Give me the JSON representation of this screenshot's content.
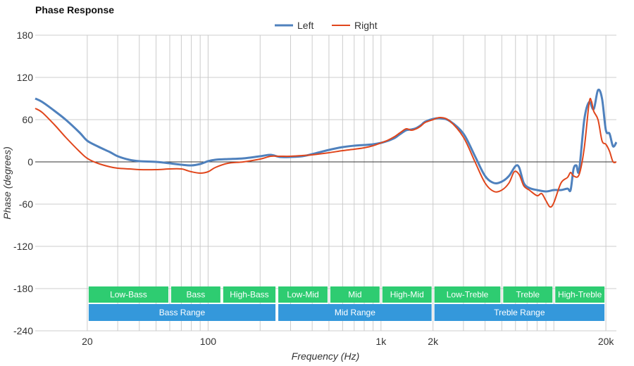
{
  "chart_data": {
    "type": "line",
    "title": "Phase Response",
    "xlabel": "Frequency (Hz)",
    "ylabel": "Phase (degrees)",
    "x_scale": "log",
    "xlim": [
      10,
      23000
    ],
    "ylim": [
      -240,
      180
    ],
    "x_ticks": [
      {
        "value": 20,
        "label": "20"
      },
      {
        "value": 100,
        "label": "100"
      },
      {
        "value": 1000,
        "label": "1k"
      },
      {
        "value": 2000,
        "label": "2k"
      },
      {
        "value": 20000,
        "label": "20k"
      }
    ],
    "y_ticks": [
      180,
      120,
      60,
      0,
      -60,
      -120,
      -180,
      -240
    ],
    "grid": true,
    "legend_position": "top-center",
    "series": [
      {
        "name": "Left",
        "color": "#4f81bd",
        "points": [
          [
            10,
            90
          ],
          [
            11,
            85
          ],
          [
            13,
            72
          ],
          [
            15,
            60
          ],
          [
            18,
            42
          ],
          [
            20,
            30
          ],
          [
            23,
            22
          ],
          [
            27,
            14
          ],
          [
            30,
            8
          ],
          [
            35,
            3
          ],
          [
            40,
            1
          ],
          [
            50,
            0
          ],
          [
            60,
            -2
          ],
          [
            70,
            -4
          ],
          [
            80,
            -5
          ],
          [
            90,
            -3
          ],
          [
            100,
            1
          ],
          [
            110,
            3
          ],
          [
            130,
            4
          ],
          [
            160,
            5
          ],
          [
            200,
            8
          ],
          [
            230,
            10
          ],
          [
            260,
            7
          ],
          [
            300,
            7
          ],
          [
            350,
            8
          ],
          [
            400,
            11
          ],
          [
            500,
            17
          ],
          [
            600,
            21
          ],
          [
            700,
            23
          ],
          [
            800,
            24
          ],
          [
            900,
            25
          ],
          [
            1000,
            27
          ],
          [
            1100,
            30
          ],
          [
            1200,
            34
          ],
          [
            1300,
            40
          ],
          [
            1400,
            45
          ],
          [
            1500,
            46
          ],
          [
            1600,
            48
          ],
          [
            1700,
            52
          ],
          [
            1800,
            57
          ],
          [
            2000,
            61
          ],
          [
            2200,
            62
          ],
          [
            2500,
            58
          ],
          [
            3000,
            40
          ],
          [
            3500,
            8
          ],
          [
            4000,
            -20
          ],
          [
            4500,
            -30
          ],
          [
            5000,
            -28
          ],
          [
            5500,
            -20
          ],
          [
            6000,
            -6
          ],
          [
            6300,
            -8
          ],
          [
            6700,
            -30
          ],
          [
            7200,
            -37
          ],
          [
            8000,
            -40
          ],
          [
            9000,
            -42
          ],
          [
            10000,
            -40
          ],
          [
            11000,
            -40
          ],
          [
            12000,
            -38
          ],
          [
            12500,
            -40
          ],
          [
            13000,
            -10
          ],
          [
            13500,
            -5
          ],
          [
            14000,
            -12
          ],
          [
            15000,
            60
          ],
          [
            16000,
            85
          ],
          [
            17000,
            75
          ],
          [
            18000,
            102
          ],
          [
            19000,
            90
          ],
          [
            20000,
            45
          ],
          [
            21000,
            40
          ],
          [
            22000,
            22
          ],
          [
            23000,
            28
          ]
        ]
      },
      {
        "name": "Right",
        "color": "#e0461c",
        "points": [
          [
            10,
            76
          ],
          [
            11,
            70
          ],
          [
            13,
            52
          ],
          [
            15,
            35
          ],
          [
            18,
            15
          ],
          [
            20,
            5
          ],
          [
            23,
            -2
          ],
          [
            27,
            -7
          ],
          [
            30,
            -9
          ],
          [
            35,
            -10
          ],
          [
            40,
            -11
          ],
          [
            50,
            -11
          ],
          [
            60,
            -10
          ],
          [
            70,
            -10
          ],
          [
            75,
            -12
          ],
          [
            80,
            -14
          ],
          [
            90,
            -16
          ],
          [
            100,
            -14
          ],
          [
            110,
            -8
          ],
          [
            130,
            -2
          ],
          [
            160,
            0
          ],
          [
            200,
            4
          ],
          [
            230,
            8
          ],
          [
            260,
            8
          ],
          [
            300,
            8
          ],
          [
            350,
            9
          ],
          [
            400,
            10
          ],
          [
            500,
            13
          ],
          [
            600,
            16
          ],
          [
            700,
            18
          ],
          [
            800,
            20
          ],
          [
            900,
            23
          ],
          [
            1000,
            27
          ],
          [
            1100,
            31
          ],
          [
            1200,
            36
          ],
          [
            1300,
            42
          ],
          [
            1400,
            47
          ],
          [
            1500,
            45
          ],
          [
            1600,
            47
          ],
          [
            1700,
            51
          ],
          [
            1800,
            56
          ],
          [
            2000,
            60
          ],
          [
            2200,
            63
          ],
          [
            2500,
            58
          ],
          [
            3000,
            35
          ],
          [
            3500,
            0
          ],
          [
            4000,
            -30
          ],
          [
            4500,
            -42
          ],
          [
            5000,
            -40
          ],
          [
            5500,
            -30
          ],
          [
            5900,
            -14
          ],
          [
            6300,
            -18
          ],
          [
            6700,
            -34
          ],
          [
            7200,
            -40
          ],
          [
            8000,
            -48
          ],
          [
            8500,
            -45
          ],
          [
            9000,
            -55
          ],
          [
            9500,
            -64
          ],
          [
            10000,
            -58
          ],
          [
            11000,
            -30
          ],
          [
            12000,
            -22
          ],
          [
            12500,
            -15
          ],
          [
            13000,
            -20
          ],
          [
            14000,
            -18
          ],
          [
            15000,
            20
          ],
          [
            16000,
            84
          ],
          [
            16500,
            86
          ],
          [
            17000,
            72
          ],
          [
            18000,
            60
          ],
          [
            19000,
            30
          ],
          [
            20000,
            25
          ],
          [
            21000,
            15
          ],
          [
            22000,
            0
          ],
          [
            23000,
            0
          ]
        ]
      }
    ],
    "bands_row1": [
      {
        "label": "Low-Bass",
        "from": 20,
        "to": 60
      },
      {
        "label": "Bass",
        "from": 60,
        "to": 120
      },
      {
        "label": "High-Bass",
        "from": 120,
        "to": 250
      },
      {
        "label": "Low-Mid",
        "from": 250,
        "to": 500
      },
      {
        "label": "Mid",
        "from": 500,
        "to": 1000
      },
      {
        "label": "High-Mid",
        "from": 1000,
        "to": 2000
      },
      {
        "label": "Low-Treble",
        "from": 2000,
        "to": 5000
      },
      {
        "label": "Treble",
        "from": 5000,
        "to": 10000
      },
      {
        "label": "High-Treble",
        "from": 10000,
        "to": 20000
      }
    ],
    "bands_row2": [
      {
        "label": "Bass Range",
        "from": 20,
        "to": 250
      },
      {
        "label": "Mid Range",
        "from": 250,
        "to": 2000
      },
      {
        "label": "Treble Range",
        "from": 2000,
        "to": 20000
      }
    ],
    "band_colors": {
      "row1": "#2ecc71",
      "row2": "#3498db"
    }
  }
}
